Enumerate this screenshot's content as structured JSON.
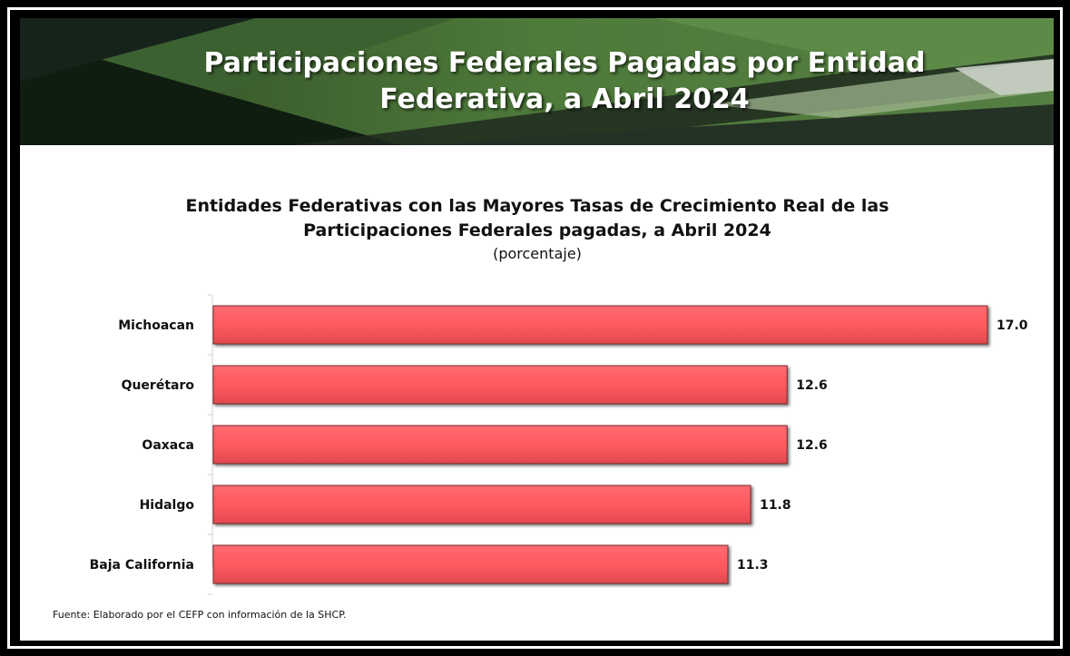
{
  "banner": {
    "title_line1": "Participaciones Federales Pagadas por Entidad",
    "title_line2": "Federativa, a Abril 2024"
  },
  "chart_data": {
    "type": "bar",
    "orientation": "horizontal",
    "title_line1": "Entidades Federativas con las Mayores Tasas de Crecimiento Real de las",
    "title_line2": "Participaciones Federales pagadas, a Abril 2024",
    "subtitle": "(porcentaje)",
    "categories": [
      "Michoacan",
      "Querétaro",
      "Oaxaca",
      "Hidalgo",
      "Baja California"
    ],
    "values": [
      17.0,
      12.6,
      12.6,
      11.8,
      11.3
    ],
    "value_labels": [
      "17.0",
      "12.6",
      "12.6",
      "11.8",
      "11.3"
    ],
    "xlim": [
      0,
      17.0
    ],
    "bar_color": "#ff5a5f",
    "grid": false,
    "legend": "none"
  },
  "source": "Fuente: Elaborado por el CEFP con información de la SHCP.",
  "colors": {
    "banner_dark": "#1b2a1c",
    "banner_green": "#4e7a3a",
    "banner_light": "#7fa36a",
    "frame": "#000000"
  }
}
